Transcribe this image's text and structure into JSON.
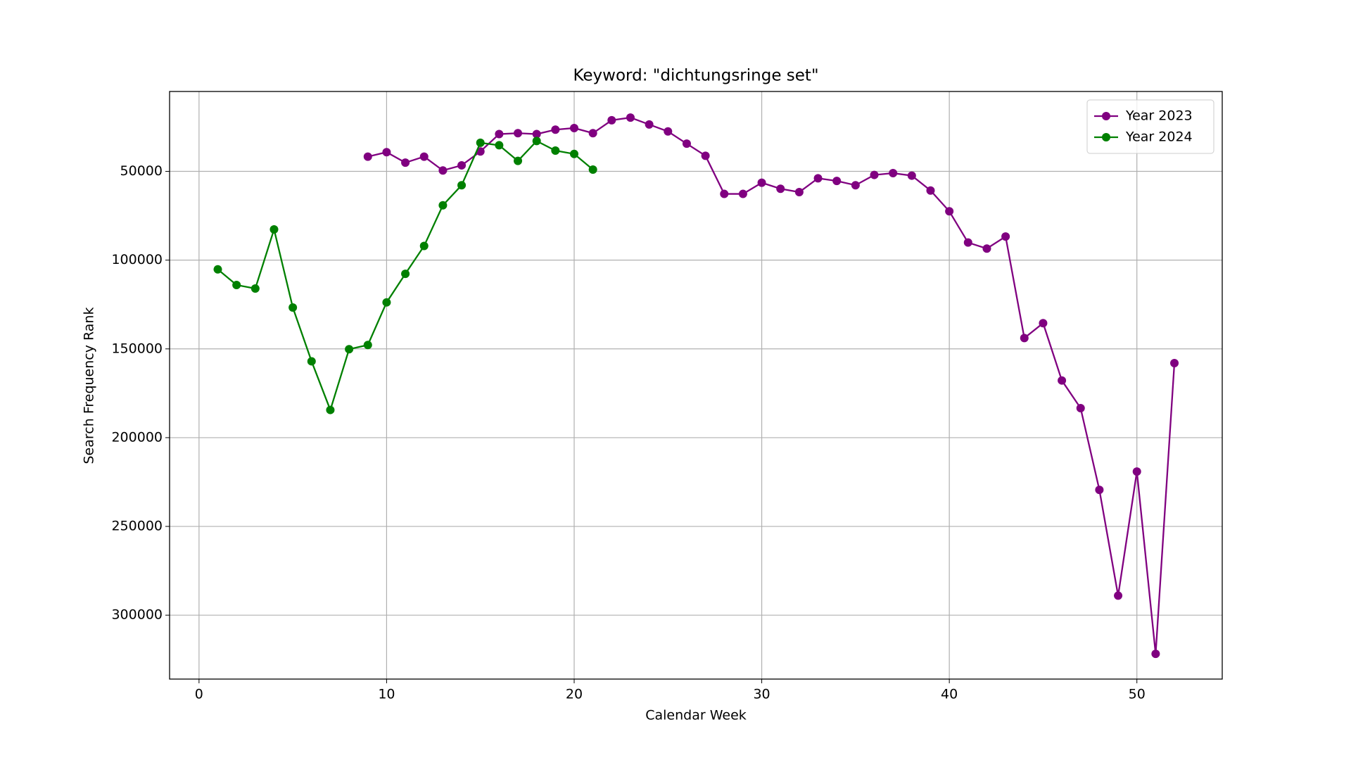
{
  "chart_data": {
    "type": "line",
    "title": "Keyword: \"dichtungsringe set\"",
    "x_label": "Calendar Week",
    "y_label": "Search Frequency Rank",
    "xlim": [
      -1.57,
      54.55
    ],
    "ylim": [
      336000,
      5000
    ],
    "xticks": [
      0,
      10,
      20,
      30,
      40,
      50
    ],
    "yticks": [
      50000,
      100000,
      150000,
      200000,
      250000,
      300000
    ],
    "grid": true,
    "legend": "upper right",
    "series": [
      {
        "name": "Year 2023",
        "color": "#800080",
        "x": [
          9,
          10,
          11,
          12,
          13,
          14,
          15,
          16,
          17,
          18,
          19,
          20,
          21,
          22,
          23,
          24,
          25,
          26,
          27,
          28,
          29,
          30,
          31,
          32,
          33,
          34,
          35,
          36,
          37,
          38,
          39,
          40,
          41,
          42,
          43,
          44,
          45,
          46,
          47,
          48,
          49,
          50,
          51,
          52
        ],
        "values": [
          41700,
          39200,
          45100,
          41700,
          49500,
          46600,
          38800,
          29000,
          28500,
          29000,
          26500,
          25600,
          28500,
          21200,
          19700,
          23600,
          27500,
          34400,
          41200,
          62700,
          62700,
          56400,
          59800,
          61700,
          53900,
          55400,
          57800,
          52000,
          51000,
          52400,
          60800,
          72500,
          90100,
          93500,
          86700,
          143900,
          135500,
          167800,
          183400,
          229400,
          289000,
          219100,
          321800,
          158000
        ]
      },
      {
        "name": "Year 2024",
        "color": "#008000",
        "x": [
          1,
          2,
          3,
          4,
          5,
          6,
          7,
          8,
          9,
          10,
          11,
          12,
          13,
          14,
          15,
          16,
          17,
          18,
          19,
          20,
          21
        ],
        "values": [
          105200,
          114000,
          116000,
          82700,
          126700,
          157000,
          184400,
          150200,
          147800,
          123800,
          107700,
          92000,
          69100,
          57800,
          33900,
          35300,
          44100,
          32900,
          38300,
          40200,
          49000
        ]
      }
    ]
  }
}
